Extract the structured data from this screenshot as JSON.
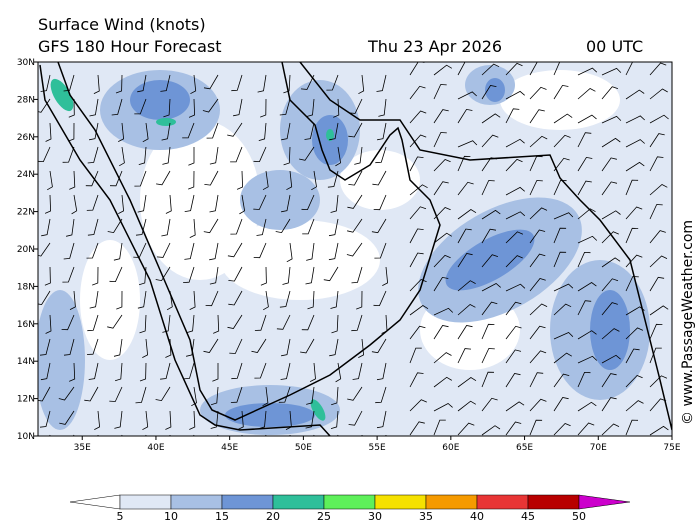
{
  "header": {
    "title": "Surface Wind (knots)",
    "subtitle": "GFS 180 Hour Forecast",
    "date": "Thu 23 Apr 2026",
    "time": "00 UTC"
  },
  "map": {
    "lon_range": [
      32,
      75
    ],
    "lat_range": [
      10,
      30
    ],
    "lon_ticks": [
      {
        "value": 35,
        "label": "35E"
      },
      {
        "value": 40,
        "label": "40E"
      },
      {
        "value": 45,
        "label": "45E"
      },
      {
        "value": 50,
        "label": "50E"
      },
      {
        "value": 55,
        "label": "55E"
      },
      {
        "value": 60,
        "label": "60E"
      },
      {
        "value": 65,
        "label": "65E"
      },
      {
        "value": 70,
        "label": "70E"
      },
      {
        "value": 75,
        "label": "75E"
      }
    ],
    "lat_ticks": [
      {
        "value": 10,
        "label": "10N"
      },
      {
        "value": 12,
        "label": "12N"
      },
      {
        "value": 14,
        "label": "14N"
      },
      {
        "value": 16,
        "label": "16N"
      },
      {
        "value": 18,
        "label": "18N"
      },
      {
        "value": 20,
        "label": "20N"
      },
      {
        "value": 22,
        "label": "22N"
      },
      {
        "value": 24,
        "label": "24N"
      },
      {
        "value": 26,
        "label": "26N"
      },
      {
        "value": 28,
        "label": "28N"
      },
      {
        "value": 30,
        "label": "30N"
      }
    ]
  },
  "colorbar": {
    "levels": [
      5,
      10,
      15,
      20,
      25,
      30,
      35,
      40,
      45,
      50
    ],
    "colors": [
      "#ffffff",
      "#e0e8f5",
      "#a8c0e4",
      "#6e95d6",
      "#2fbf9a",
      "#5ef05a",
      "#f5e100",
      "#f59a00",
      "#e83535",
      "#b80000",
      "#cc00cc"
    ]
  },
  "credit": "© www.PassageWeather.com"
}
